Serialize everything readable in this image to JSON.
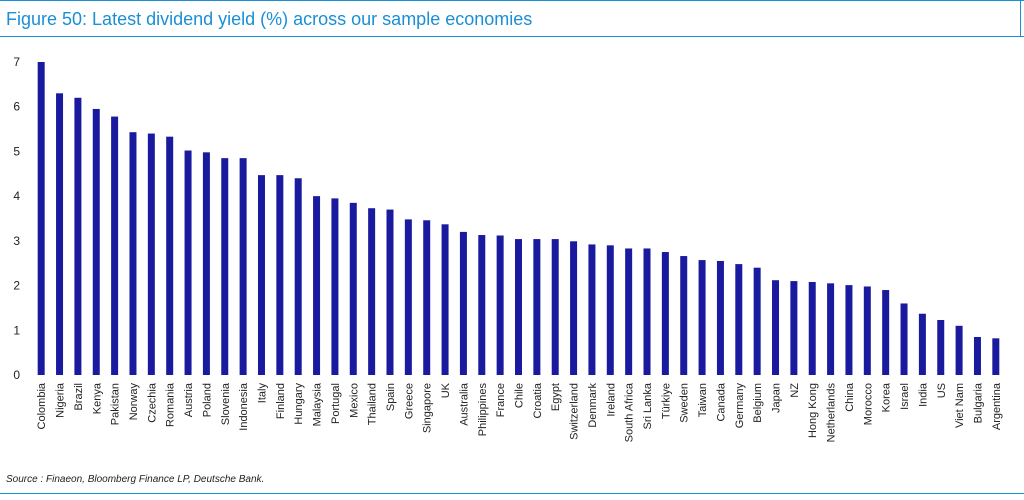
{
  "colors": {
    "accent": "#1a8fd6",
    "bar": "#1a1a9e",
    "text": "#222222"
  },
  "source_text": "Source : Finaeon, Bloomberg Finance LP, Deutsche Bank.",
  "chart_data": {
    "type": "bar",
    "title": "Figure 50: Latest dividend yield (%) across our sample economies",
    "xlabel": "",
    "ylabel": "",
    "ylim": [
      0,
      7
    ],
    "yticks": [
      0,
      1,
      2,
      3,
      4,
      5,
      6,
      7
    ],
    "categories": [
      "Colombia",
      "Nigeria",
      "Brazil",
      "Kenya",
      "Pakistan",
      "Norway",
      "Czechia",
      "Romania",
      "Austria",
      "Poland",
      "Slovenia",
      "Indonesia",
      "Italy",
      "Finland",
      "Hungary",
      "Malaysia",
      "Portugal",
      "Mexico",
      "Thailand",
      "Spain",
      "Greece",
      "Singapore",
      "UK",
      "Australia",
      "Philippines",
      "France",
      "Chile",
      "Croatia",
      "Egypt",
      "Switzerland",
      "Denmark",
      "Ireland",
      "South Africa",
      "Sri Lanka",
      "Türkiye",
      "Sweden",
      "Taiwan",
      "Canada",
      "Germany",
      "Belgium",
      "Japan",
      "NZ",
      "Hong Kong",
      "Netherlands",
      "China",
      "Morocco",
      "Korea",
      "Israel",
      "India",
      "US",
      "Viet Nam",
      "Bulgaria",
      "Argentina"
    ],
    "values": [
      7.0,
      6.3,
      6.2,
      5.95,
      5.78,
      5.43,
      5.4,
      5.33,
      5.02,
      4.98,
      4.85,
      4.85,
      4.47,
      4.47,
      4.4,
      4.0,
      3.95,
      3.85,
      3.73,
      3.7,
      3.48,
      3.46,
      3.37,
      3.2,
      3.13,
      3.12,
      3.04,
      3.04,
      3.04,
      2.99,
      2.92,
      2.9,
      2.83,
      2.83,
      2.75,
      2.66,
      2.57,
      2.55,
      2.48,
      2.4,
      2.12,
      2.1,
      2.08,
      2.05,
      2.01,
      1.98,
      1.9,
      1.6,
      1.37,
      1.23,
      1.1,
      0.85,
      0.82
    ]
  }
}
